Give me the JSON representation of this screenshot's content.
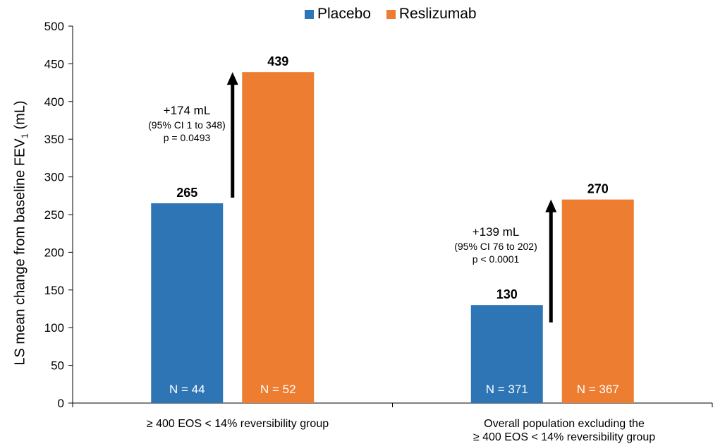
{
  "legend": {
    "placebo_label": "Placebo",
    "placebo_color": "#2E75B6",
    "reslizumab_label": "Reslizumab",
    "reslizumab_color": "#ED7D31"
  },
  "y_axis": {
    "label_main": "LS mean change from baseline FEV",
    "label_subscript": "1",
    "label_unit": " (mL)"
  },
  "annotations": [
    {
      "delta": "+174 mL",
      "ci": "(95% CI 1 to 348)",
      "p": "p = 0.0493"
    },
    {
      "delta": "+139 mL",
      "ci": "(95% CI 76 to 202)",
      "p": "p < 0.0001"
    }
  ],
  "chart_data": {
    "type": "bar",
    "categories": [
      [
        "≥ 400 EOS < 14% reversibility group"
      ],
      [
        "Overall population excluding the",
        "≥ 400 EOS < 14% reversibility group"
      ]
    ],
    "series": [
      {
        "name": "Placebo",
        "color": "#2E75B6",
        "values": [
          265,
          130
        ],
        "n_labels": [
          "N = 44",
          "N = 371"
        ]
      },
      {
        "name": "Reslizumab",
        "color": "#ED7D31",
        "values": [
          439,
          270
        ],
        "n_labels": [
          "N = 52",
          "N = 367"
        ]
      }
    ],
    "ylabel": "LS mean change from baseline FEV1 (mL)",
    "ylim": [
      0,
      500
    ],
    "yticks": [
      0,
      50,
      100,
      150,
      200,
      250,
      300,
      350,
      400,
      450,
      500
    ],
    "grid": false,
    "legend_position": "top-center"
  }
}
